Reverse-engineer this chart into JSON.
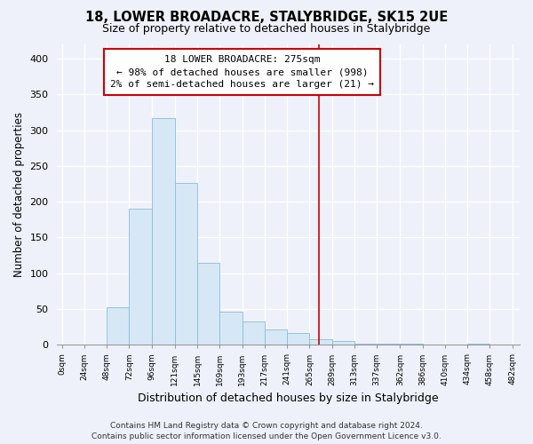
{
  "title": "18, LOWER BROADACRE, STALYBRIDGE, SK15 2UE",
  "subtitle": "Size of property relative to detached houses in Stalybridge",
  "xlabel": "Distribution of detached houses by size in Stalybridge",
  "ylabel": "Number of detached properties",
  "bar_edges": [
    0,
    24,
    48,
    72,
    96,
    121,
    145,
    169,
    193,
    217,
    241,
    265,
    289,
    313,
    337,
    362,
    386,
    410,
    434,
    458,
    482
  ],
  "bar_heights": [
    0,
    0,
    53,
    190,
    317,
    226,
    115,
    46,
    33,
    21,
    16,
    8,
    5,
    2,
    1,
    1,
    0,
    0,
    1,
    0
  ],
  "bar_color": "#d6e8f5",
  "bar_edge_color": "#8bbcd6",
  "vline_x": 275,
  "vline_color": "#cc0000",
  "annotation_title": "18 LOWER BROADACRE: 275sqm",
  "annotation_line1": "← 98% of detached houses are smaller (998)",
  "annotation_line2": "2% of semi-detached houses are larger (21) →",
  "annotation_box_color": "#ffffff",
  "annotation_box_edge": "#cc0000",
  "ylim": [
    0,
    420
  ],
  "xlim_min": -5,
  "xlim_max": 490,
  "tick_labels": [
    "0sqm",
    "24sqm",
    "48sqm",
    "72sqm",
    "96sqm",
    "121sqm",
    "145sqm",
    "169sqm",
    "193sqm",
    "217sqm",
    "241sqm",
    "265sqm",
    "289sqm",
    "313sqm",
    "337sqm",
    "362sqm",
    "386sqm",
    "410sqm",
    "434sqm",
    "458sqm",
    "482sqm"
  ],
  "tick_positions": [
    0,
    24,
    48,
    72,
    96,
    121,
    145,
    169,
    193,
    217,
    241,
    265,
    289,
    313,
    337,
    362,
    386,
    410,
    434,
    458,
    482
  ],
  "yticks": [
    0,
    50,
    100,
    150,
    200,
    250,
    300,
    350,
    400
  ],
  "footnote": "Contains HM Land Registry data © Crown copyright and database right 2024.\nContains public sector information licensed under the Open Government Licence v3.0.",
  "bg_color": "#eef1fa",
  "grid_color": "#ffffff",
  "title_fontsize": 10.5,
  "subtitle_fontsize": 9,
  "xlabel_fontsize": 9,
  "ylabel_fontsize": 8.5,
  "tick_fontsize": 6.5,
  "ytick_fontsize": 8,
  "footnote_fontsize": 6.5,
  "ann_fontsize": 8
}
